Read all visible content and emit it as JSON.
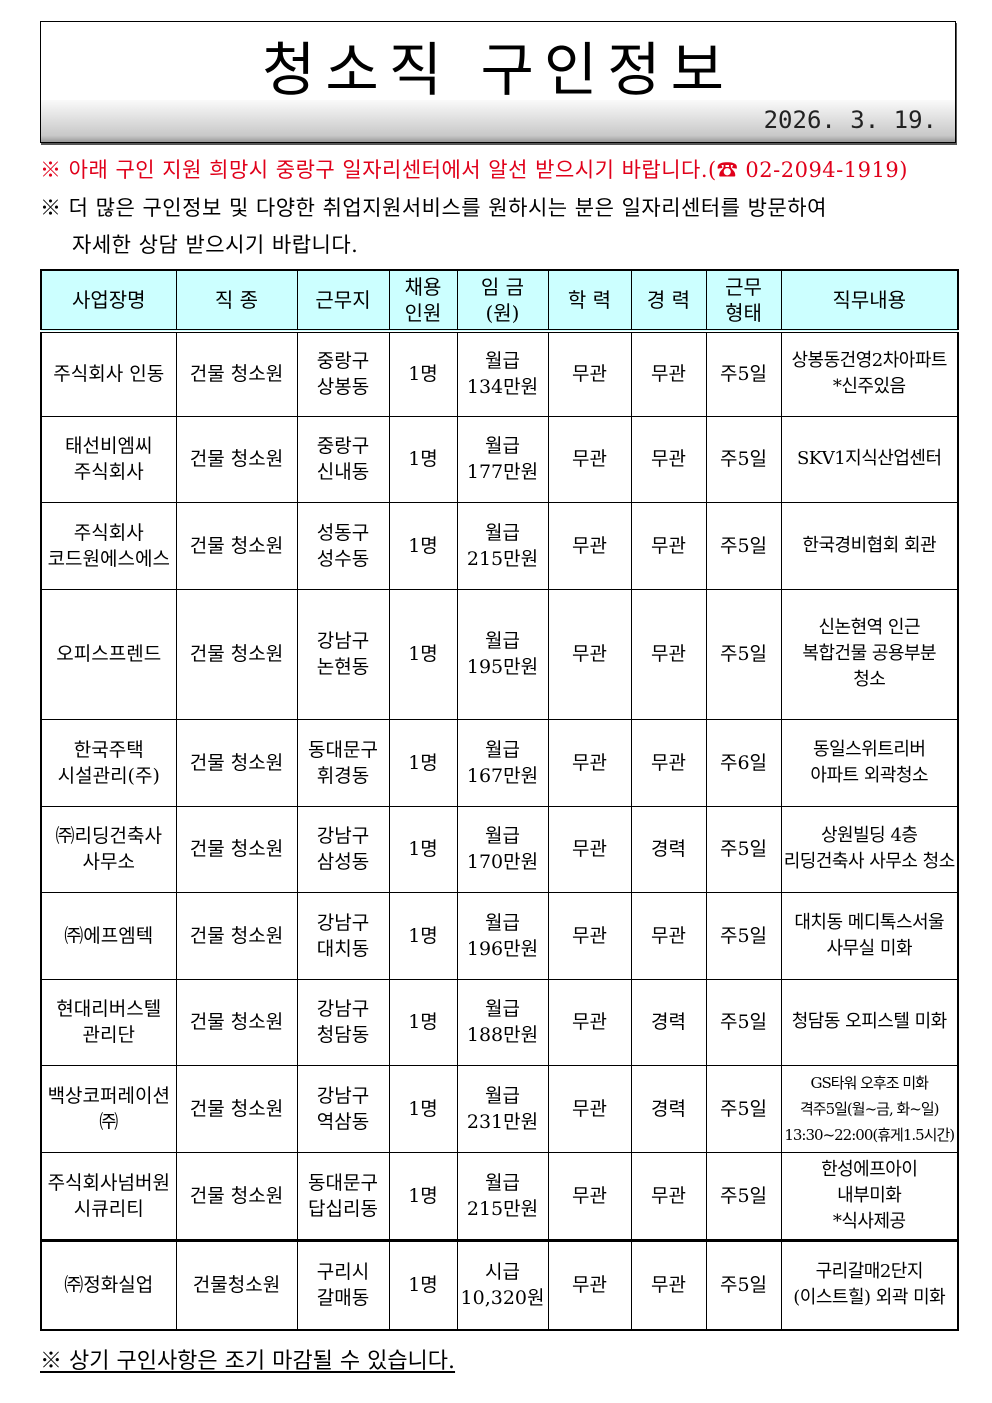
{
  "header": {
    "title": "청소직 구인정보",
    "date": "2026. 3. 19."
  },
  "notices": {
    "line1": "※ 아래 구인 지원 희망시 중랑구 일자리센터에서 알선 받으시기 바랍니다.(☎ 02-2094-1919)",
    "line2": "※ 더 많은 구인정보 및 다양한 취업지원서비스를 원하시는 분은 일자리센터를 방문하여",
    "line3": "자세한 상담 받으시기 바랍니다."
  },
  "colors": {
    "header_bg": "#ccffff",
    "notice_red": "#e0001a"
  },
  "table": {
    "headers": [
      "사업장명",
      "직 종",
      "근무지",
      "채용\n인원",
      "임 금\n(원)",
      "학 력",
      "경 력",
      "근무\n형태",
      "직무내용"
    ],
    "rows": [
      [
        "주식회사 인동",
        "건물 청소원",
        "중랑구\n상봉동",
        "1명",
        "월급\n134만원",
        "무관",
        "무관",
        "주5일",
        "상봉동건영2차아파트\n*신주있음"
      ],
      [
        "태선비엠씨\n주식회사",
        "건물 청소원",
        "중랑구\n신내동",
        "1명",
        "월급\n177만원",
        "무관",
        "무관",
        "주5일",
        "SKV1지식산업센터"
      ],
      [
        "주식회사\n코드원에스에스",
        "건물 청소원",
        "성동구\n성수동",
        "1명",
        "월급\n215만원",
        "무관",
        "무관",
        "주5일",
        "한국경비협회 회관"
      ],
      [
        "오피스프렌드",
        "건물 청소원",
        "강남구\n논현동",
        "1명",
        "월급\n195만원",
        "무관",
        "무관",
        "주5일",
        "신논현역 인근\n복합건물 공용부분\n청소"
      ],
      [
        "한국주택\n시설관리(주)",
        "건물 청소원",
        "동대문구\n휘경동",
        "1명",
        "월급\n167만원",
        "무관",
        "무관",
        "주6일",
        "동일스위트리버\n아파트 외곽청소"
      ],
      [
        "㈜리딩건축사\n사무소",
        "건물 청소원",
        "강남구\n삼성동",
        "1명",
        "월급\n170만원",
        "무관",
        "경력",
        "주5일",
        "상원빌딩 4층\n리딩건축사 사무소 청소"
      ],
      [
        "㈜에프엠텍",
        "건물 청소원",
        "강남구\n대치동",
        "1명",
        "월급\n196만원",
        "무관",
        "무관",
        "주5일",
        "대치동 메디톡스서울\n사무실 미화"
      ],
      [
        "현대리버스텔\n관리단",
        "건물 청소원",
        "강남구\n청담동",
        "1명",
        "월급\n188만원",
        "무관",
        "경력",
        "주5일",
        "청담동 오피스텔 미화"
      ],
      [
        "백상코퍼레이션\n㈜",
        "건물 청소원",
        "강남구\n역삼동",
        "1명",
        "월급\n231만원",
        "무관",
        "경력",
        "주5일",
        "GS타워 오후조 미화\n격주5일(월~금, 화~일)\n13:30~22:00(휴게1.5시간)"
      ],
      [
        "주식회사넘버원\n시큐리티",
        "건물 청소원",
        "동대문구\n답십리동",
        "1명",
        "월급\n215만원",
        "무관",
        "무관",
        "주5일",
        "한성에프아이\n내부미화\n*식사제공"
      ],
      [
        "㈜정화실업",
        "건물청소원",
        "구리시\n갈매동",
        "1명",
        "시급\n10,320원",
        "무관",
        "무관",
        "주5일",
        "구리갈매2단지\n(이스트힐) 외곽 미화"
      ]
    ]
  },
  "footer": {
    "note": "※ 상기 구인사항은 조기 마감될 수 있습니다."
  }
}
